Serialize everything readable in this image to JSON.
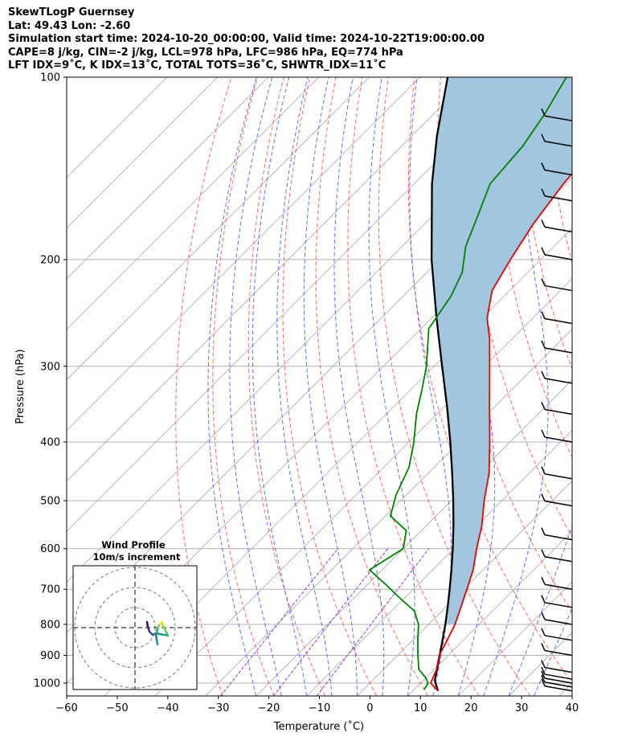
{
  "header": {
    "lines": [
      "SkewTLogP Guernsey",
      "Lat: 49.43   Lon: -2.60",
      "Simulation start time: 2024-10-20_00:00:00, Valid time: 2024-10-22T19:00:00.00",
      "CAPE=8 j/kg, CIN=-2 j/kg, LCL=978 hPa, LFC=986 hPa, EQ=774 hPa",
      "LFT IDX=9˚C, K IDX=13˚C, TOTAL TOTS=36˚C, SHWTR_IDX=11˚C"
    ]
  },
  "chart_data": {
    "type": "line",
    "chart_kind": "skew-t log-p",
    "xlabel": "Temperature (˚C)",
    "ylabel": "Pressure (hPa)",
    "xlim": [
      -60,
      40
    ],
    "ylim": [
      1050,
      100
    ],
    "y_scale": "log",
    "x_ticks": [
      -60,
      -50,
      -40,
      -30,
      -20,
      -10,
      0,
      10,
      20,
      30,
      40
    ],
    "x_tick_labels": [
      "−60",
      "−50",
      "−40",
      "−30",
      "−20",
      "−10",
      "0",
      "10",
      "20",
      "30",
      "40"
    ],
    "y_ticks": [
      1000,
      900,
      800,
      700,
      600,
      500,
      400,
      300,
      200,
      100
    ],
    "y_tick_labels": [
      "1000",
      "900",
      "800",
      "700",
      "600",
      "500",
      "400",
      "300",
      "200",
      "100"
    ],
    "grid": true,
    "colors": {
      "temperature": "#e60000",
      "dewpoint": "#008000",
      "parcel": "#000000",
      "cape_fill": "#a3c6e0",
      "dry_adiabat": "#ff5050",
      "moist_adiabat": "#4a55ff",
      "mixing_ratio": "#9040d0",
      "isotherm": "#a8a8a8"
    },
    "series": [
      {
        "key": "temperature",
        "points": [
          {
            "p": 1030,
            "t": 15.0
          },
          {
            "p": 1000,
            "t": 12.0
          },
          {
            "p": 950,
            "t": 10.5
          },
          {
            "p": 900,
            "t": 8.2
          },
          {
            "p": 850,
            "t": 6.8
          },
          {
            "p": 800,
            "t": 5.2
          },
          {
            "p": 750,
            "t": 3.0
          },
          {
            "p": 700,
            "t": 0.6
          },
          {
            "p": 650,
            "t": -2.0
          },
          {
            "p": 600,
            "t": -5.5
          },
          {
            "p": 550,
            "t": -9.0
          },
          {
            "p": 500,
            "t": -13.5
          },
          {
            "p": 450,
            "t": -18.0
          },
          {
            "p": 400,
            "t": -24.0
          },
          {
            "p": 350,
            "t": -31.0
          },
          {
            "p": 300,
            "t": -39.0
          },
          {
            "p": 270,
            "t": -44.5
          },
          {
            "p": 250,
            "t": -49.0
          },
          {
            "p": 225,
            "t": -53.5
          },
          {
            "p": 200,
            "t": -56.0
          },
          {
            "p": 175,
            "t": -58.5
          },
          {
            "p": 150,
            "t": -60.5
          },
          {
            "p": 125,
            "t": -62.0
          },
          {
            "p": 110,
            "t": -63.0
          },
          {
            "p": 100,
            "t": -63.5
          }
        ]
      },
      {
        "key": "dewpoint",
        "points": [
          {
            "p": 1025,
            "t": 12.0
          },
          {
            "p": 1000,
            "t": 11.5
          },
          {
            "p": 980,
            "t": 10.0
          },
          {
            "p": 950,
            "t": 7.0
          },
          {
            "p": 900,
            "t": 4.0
          },
          {
            "p": 850,
            "t": 1.0
          },
          {
            "p": 800,
            "t": -2.0
          },
          {
            "p": 760,
            "t": -5.5
          },
          {
            "p": 730,
            "t": -10.0
          },
          {
            "p": 690,
            "t": -16.0
          },
          {
            "p": 650,
            "t": -22.5
          },
          {
            "p": 600,
            "t": -20.0
          },
          {
            "p": 560,
            "t": -23.0
          },
          {
            "p": 530,
            "t": -29.0
          },
          {
            "p": 490,
            "t": -32.0
          },
          {
            "p": 440,
            "t": -35.0
          },
          {
            "p": 400,
            "t": -39.0
          },
          {
            "p": 360,
            "t": -44.0
          },
          {
            "p": 330,
            "t": -47.5
          },
          {
            "p": 300,
            "t": -51.5
          },
          {
            "p": 260,
            "t": -58.5
          },
          {
            "p": 230,
            "t": -60.5
          },
          {
            "p": 210,
            "t": -63.0
          },
          {
            "p": 190,
            "t": -67.5
          },
          {
            "p": 170,
            "t": -71.0
          },
          {
            "p": 150,
            "t": -75.0
          },
          {
            "p": 130,
            "t": -76.0
          },
          {
            "p": 115,
            "t": -78.0
          },
          {
            "p": 100,
            "t": -81.0
          }
        ]
      },
      {
        "key": "parcel",
        "points": [
          {
            "p": 1030,
            "t": 15.0
          },
          {
            "p": 990,
            "t": 12.3
          },
          {
            "p": 950,
            "t": 10.6
          },
          {
            "p": 900,
            "t": 8.3
          },
          {
            "p": 850,
            "t": 5.9
          },
          {
            "p": 800,
            "t": 3.3
          },
          {
            "p": 750,
            "t": 0.4
          },
          {
            "p": 700,
            "t": -2.8
          },
          {
            "p": 650,
            "t": -6.3
          },
          {
            "p": 600,
            "t": -10.2
          },
          {
            "p": 550,
            "t": -14.6
          },
          {
            "p": 500,
            "t": -19.6
          },
          {
            "p": 450,
            "t": -25.3
          },
          {
            "p": 400,
            "t": -31.8
          },
          {
            "p": 350,
            "t": -39.4
          },
          {
            "p": 300,
            "t": -48.4
          },
          {
            "p": 250,
            "t": -59.0
          },
          {
            "p": 200,
            "t": -71.6
          },
          {
            "p": 150,
            "t": -86.5
          },
          {
            "p": 125,
            "t": -95.0
          },
          {
            "p": 100,
            "t": -104.5
          }
        ]
      }
    ],
    "wind_barbs": [
      {
        "p": 1030
      },
      {
        "p": 1015
      },
      {
        "p": 1000
      },
      {
        "p": 985
      },
      {
        "p": 960
      },
      {
        "p": 900
      },
      {
        "p": 850
      },
      {
        "p": 800
      },
      {
        "p": 750
      },
      {
        "p": 700
      },
      {
        "p": 630
      },
      {
        "p": 580
      },
      {
        "p": 510
      },
      {
        "p": 460
      },
      {
        "p": 400
      },
      {
        "p": 360
      },
      {
        "p": 320
      },
      {
        "p": 285
      },
      {
        "p": 255
      },
      {
        "p": 225
      },
      {
        "p": 200
      },
      {
        "p": 180
      },
      {
        "p": 160
      },
      {
        "p": 145
      },
      {
        "p": 130
      },
      {
        "p": 118
      }
    ],
    "inset": {
      "title_line1": "Wind Profile",
      "title_line2": "10m/s increment"
    }
  }
}
